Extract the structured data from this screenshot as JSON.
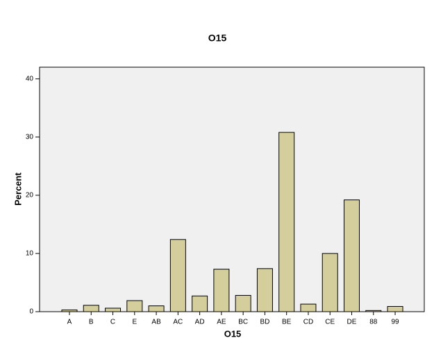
{
  "chart_data": {
    "type": "bar",
    "title": "O15",
    "x_label": "O15",
    "y_label": "Percent",
    "categories": [
      "A",
      "B",
      "C",
      "E",
      "AB",
      "AC",
      "AD",
      "AE",
      "BC",
      "BD",
      "BE",
      "CD",
      "CE",
      "DE",
      "88",
      "99"
    ],
    "values": [
      0.3,
      1.1,
      0.6,
      1.9,
      1.0,
      12.4,
      2.7,
      7.3,
      2.8,
      7.4,
      30.8,
      1.3,
      10.0,
      19.2,
      0.2,
      0.9
    ],
    "color": "#d3ce9c",
    "ylim": [
      0,
      42
    ],
    "yticks": [
      0,
      10,
      20,
      30,
      40
    ],
    "grid": false
  }
}
